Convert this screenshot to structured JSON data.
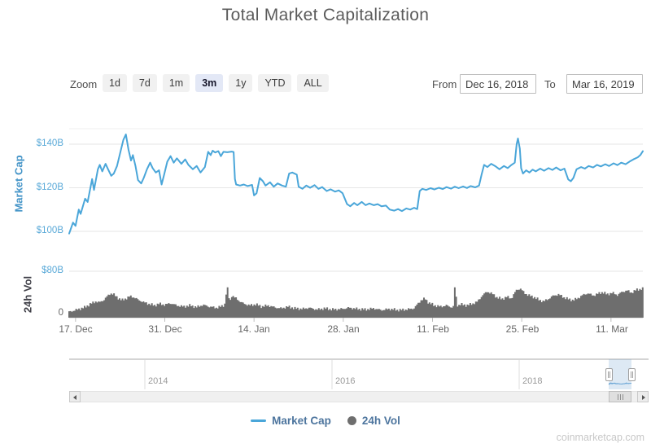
{
  "title": "Total Market Capitalization",
  "toolbar": {
    "zoom_label": "Zoom",
    "buttons": [
      {
        "label": "1d",
        "selected": false
      },
      {
        "label": "7d",
        "selected": false
      },
      {
        "label": "1m",
        "selected": false
      },
      {
        "label": "3m",
        "selected": true
      },
      {
        "label": "1y",
        "selected": false
      },
      {
        "label": "YTD",
        "selected": false
      },
      {
        "label": "ALL",
        "selected": false
      }
    ],
    "from_label": "From",
    "from_value": "Dec 16, 2018",
    "to_label": "To",
    "to_value": "Mar 16, 2019"
  },
  "axes": {
    "market_cap_title": "Market Cap",
    "vol_title": "24h Vol",
    "mc_ticks": [
      "$140B",
      "$120B",
      "$100B"
    ],
    "vol_tick_top": "$80B",
    "vol_tick_zero": "0",
    "x_labels": [
      "17. Dec",
      "31. Dec",
      "14. Jan",
      "28. Jan",
      "11. Feb",
      "25. Feb",
      "11. Mar"
    ],
    "nav_years": [
      "2014",
      "2016",
      "2018"
    ]
  },
  "legend": {
    "market_cap": "Market Cap",
    "vol": "24h Vol"
  },
  "watermark": "coinmarketcap.com",
  "colors": {
    "line_blue": "#4aa6d9",
    "vol_gray": "#6e6e6e",
    "axis_blue": "#59a9d8",
    "axis_title_blue": "#4595c8",
    "legend_text": "#4d759e",
    "selected_btn_bg": "#e3e8f6",
    "grid_gray": "#e6e6e6"
  },
  "chart_data": {
    "type": "line",
    "title": "Total Market Capitalization",
    "x_axis": {
      "start": "Dec 16, 2018",
      "end": "Mar 16, 2019",
      "unit": "days since Dec 16, 2018",
      "tick_days": [
        1,
        15,
        29,
        43,
        57,
        71,
        85
      ],
      "tick_labels": [
        "17. Dec",
        "31. Dec",
        "14. Jan",
        "28. Jan",
        "11. Feb",
        "25. Feb",
        "11. Mar"
      ]
    },
    "panes": [
      {
        "name": "Market Cap",
        "type": "line",
        "unit": "USD billions",
        "ylim": [
          95,
          148
        ],
        "yticks": [
          100,
          120,
          140
        ],
        "points": [
          [
            0,
            99
          ],
          [
            0.6,
            104
          ],
          [
            1,
            102.5
          ],
          [
            1.5,
            110
          ],
          [
            1.8,
            108
          ],
          [
            2.5,
            115
          ],
          [
            2.9,
            113.5
          ],
          [
            3.6,
            124
          ],
          [
            3.9,
            119
          ],
          [
            4.5,
            128.5
          ],
          [
            4.8,
            130.5
          ],
          [
            5.2,
            127.5
          ],
          [
            5.7,
            131
          ],
          [
            6.1,
            128.5
          ],
          [
            6.6,
            125.5
          ],
          [
            7,
            126.5
          ],
          [
            7.5,
            130
          ],
          [
            8,
            136
          ],
          [
            8.5,
            142
          ],
          [
            8.9,
            144.5
          ],
          [
            9.3,
            137.5
          ],
          [
            9.7,
            132.5
          ],
          [
            10,
            135
          ],
          [
            10.4,
            130
          ],
          [
            10.8,
            123.5
          ],
          [
            11.3,
            122
          ],
          [
            11.7,
            124.5
          ],
          [
            12.2,
            128.5
          ],
          [
            12.7,
            131.5
          ],
          [
            13.1,
            129
          ],
          [
            13.6,
            127
          ],
          [
            14.1,
            128
          ],
          [
            14.5,
            121.5
          ],
          [
            14.9,
            126
          ],
          [
            15.4,
            132
          ],
          [
            15.9,
            134.5
          ],
          [
            16.4,
            131.5
          ],
          [
            16.9,
            133.5
          ],
          [
            17.6,
            131
          ],
          [
            18.2,
            133
          ],
          [
            18.7,
            130.5
          ],
          [
            19.4,
            128.5
          ],
          [
            20,
            130
          ],
          [
            20.6,
            127
          ],
          [
            21.3,
            129.5
          ],
          [
            21.8,
            136.5
          ],
          [
            22.2,
            135
          ],
          [
            22.5,
            137
          ],
          [
            22.9,
            136.2
          ],
          [
            23.4,
            136.8
          ],
          [
            23.8,
            134.5
          ],
          [
            24.2,
            136.5
          ],
          [
            24.8,
            136.3
          ],
          [
            25.5,
            136.6
          ],
          [
            25.8,
            136.4
          ],
          [
            26,
            124
          ],
          [
            26.2,
            121.5
          ],
          [
            26.8,
            121
          ],
          [
            27.4,
            121.5
          ],
          [
            28,
            120.8
          ],
          [
            28.7,
            121.3
          ],
          [
            29,
            116.5
          ],
          [
            29.4,
            117.5
          ],
          [
            29.9,
            124.5
          ],
          [
            30.4,
            123
          ],
          [
            30.8,
            121
          ],
          [
            31.5,
            122.5
          ],
          [
            32.1,
            120.5
          ],
          [
            32.7,
            122
          ],
          [
            33.4,
            121
          ],
          [
            34,
            120.5
          ],
          [
            34.5,
            126.5
          ],
          [
            35,
            127
          ],
          [
            35.7,
            126
          ],
          [
            36,
            120.5
          ],
          [
            36.6,
            119.5
          ],
          [
            37.2,
            121
          ],
          [
            37.8,
            120
          ],
          [
            38.5,
            121.2
          ],
          [
            39.1,
            119.5
          ],
          [
            39.7,
            120.3
          ],
          [
            40.4,
            118.5
          ],
          [
            41,
            119.3
          ],
          [
            41.7,
            118.2
          ],
          [
            42.3,
            118.8
          ],
          [
            42.9,
            117.5
          ],
          [
            43.6,
            112.5
          ],
          [
            44.1,
            111.5
          ],
          [
            44.7,
            113
          ],
          [
            45.2,
            112
          ],
          [
            45.9,
            113.5
          ],
          [
            46.5,
            112
          ],
          [
            47.1,
            112.8
          ],
          [
            47.8,
            112
          ],
          [
            48.4,
            112.5
          ],
          [
            49,
            111.5
          ],
          [
            49.7,
            111.8
          ],
          [
            50.3,
            110
          ],
          [
            51,
            109.5
          ],
          [
            51.6,
            110.2
          ],
          [
            52.2,
            109.3
          ],
          [
            52.9,
            110.5
          ],
          [
            53.5,
            110
          ],
          [
            54.1,
            110.8
          ],
          [
            54.6,
            110.2
          ],
          [
            55,
            118.5
          ],
          [
            55.4,
            119.5
          ],
          [
            56,
            119
          ],
          [
            56.7,
            119.8
          ],
          [
            57.3,
            119.2
          ],
          [
            58,
            120
          ],
          [
            58.6,
            119.4
          ],
          [
            59.2,
            120.3
          ],
          [
            59.9,
            119.6
          ],
          [
            60.5,
            120.5
          ],
          [
            61.1,
            119.8
          ],
          [
            61.8,
            120.6
          ],
          [
            62.4,
            119.9
          ],
          [
            63,
            120.8
          ],
          [
            63.7,
            120.2
          ],
          [
            64.3,
            121
          ],
          [
            64.7,
            126
          ],
          [
            65.1,
            130.5
          ],
          [
            65.6,
            129.5
          ],
          [
            66.2,
            131
          ],
          [
            66.9,
            129.8
          ],
          [
            67.5,
            128.5
          ],
          [
            68.2,
            130
          ],
          [
            68.8,
            129
          ],
          [
            69.4,
            130.5
          ],
          [
            69.9,
            131.5
          ],
          [
            70.2,
            140
          ],
          [
            70.4,
            142.6
          ],
          [
            70.7,
            138
          ],
          [
            70.9,
            129
          ],
          [
            71.2,
            126.5
          ],
          [
            71.7,
            128
          ],
          [
            72.2,
            127
          ],
          [
            72.7,
            128.3
          ],
          [
            73.2,
            127.5
          ],
          [
            73.9,
            128.8
          ],
          [
            74.5,
            127.8
          ],
          [
            75.2,
            129
          ],
          [
            75.8,
            128.2
          ],
          [
            76.4,
            129.3
          ],
          [
            77.1,
            128
          ],
          [
            77.7,
            128.8
          ],
          [
            78.3,
            123.8
          ],
          [
            78.7,
            123
          ],
          [
            79.1,
            124.5
          ],
          [
            79.6,
            128.5
          ],
          [
            80.3,
            129.5
          ],
          [
            80.9,
            128.8
          ],
          [
            81.5,
            130
          ],
          [
            82.2,
            129.3
          ],
          [
            82.8,
            130.5
          ],
          [
            83.4,
            129.8
          ],
          [
            84.1,
            130.8
          ],
          [
            84.7,
            130
          ],
          [
            85.4,
            131.2
          ],
          [
            86,
            130.4
          ],
          [
            86.6,
            131.5
          ],
          [
            87.3,
            130.8
          ],
          [
            87.9,
            132
          ],
          [
            88.5,
            133
          ],
          [
            89.2,
            134
          ],
          [
            89.6,
            135
          ],
          [
            90,
            136.8
          ]
        ]
      },
      {
        "name": "24h Vol",
        "type": "column",
        "unit": "USD billions",
        "ylim": [
          0,
          80
        ],
        "yticks": [
          0,
          80
        ],
        "points": [
          [
            0,
            10
          ],
          [
            1.3,
            14
          ],
          [
            2.5,
            18
          ],
          [
            3.4,
            24
          ],
          [
            4.2,
            28
          ],
          [
            4.7,
            26
          ],
          [
            5.5,
            31
          ],
          [
            6.1,
            38
          ],
          [
            6.5,
            42
          ],
          [
            7,
            40
          ],
          [
            7.8,
            33
          ],
          [
            8.3,
            30
          ],
          [
            8.9,
            33
          ],
          [
            9.6,
            37
          ],
          [
            10.2,
            35
          ],
          [
            10.8,
            31
          ],
          [
            11.6,
            27
          ],
          [
            12.4,
            24
          ],
          [
            13.4,
            21
          ],
          [
            14.1,
            24
          ],
          [
            15,
            22
          ],
          [
            15.9,
            25
          ],
          [
            16.9,
            21
          ],
          [
            18,
            19
          ],
          [
            19,
            21
          ],
          [
            20,
            18
          ],
          [
            21,
            22
          ],
          [
            22,
            19
          ],
          [
            23.1,
            17
          ],
          [
            23.8,
            19
          ],
          [
            24.4,
            22
          ],
          [
            24.8,
            54
          ],
          [
            25.2,
            26
          ],
          [
            25.5,
            38
          ],
          [
            26.1,
            34
          ],
          [
            26.8,
            28
          ],
          [
            27.4,
            24
          ],
          [
            28.4,
            21
          ],
          [
            29.3,
            23
          ],
          [
            30.2,
            19
          ],
          [
            31.2,
            21
          ],
          [
            32.2,
            18
          ],
          [
            33.2,
            16
          ],
          [
            34.4,
            19
          ],
          [
            35.4,
            16
          ],
          [
            36.6,
            15
          ],
          [
            37.6,
            17
          ],
          [
            38.9,
            14
          ],
          [
            40.1,
            16
          ],
          [
            41.4,
            14
          ],
          [
            42.7,
            15
          ],
          [
            43.9,
            17
          ],
          [
            45.2,
            15
          ],
          [
            46.5,
            14
          ],
          [
            47.8,
            16
          ],
          [
            49,
            13
          ],
          [
            50.3,
            15
          ],
          [
            51.6,
            13
          ],
          [
            52.9,
            14
          ],
          [
            54.1,
            16
          ],
          [
            55.2,
            30
          ],
          [
            55.8,
            33
          ],
          [
            56.4,
            26
          ],
          [
            57.3,
            21
          ],
          [
            58.3,
            19
          ],
          [
            59.2,
            21
          ],
          [
            60,
            18
          ],
          [
            60.3,
            19
          ],
          [
            60.5,
            52
          ],
          [
            60.9,
            21
          ],
          [
            61.5,
            23
          ],
          [
            62.4,
            21
          ],
          [
            63.3,
            24
          ],
          [
            64,
            27
          ],
          [
            64.8,
            38
          ],
          [
            65.6,
            45
          ],
          [
            66.4,
            41
          ],
          [
            67.1,
            35
          ],
          [
            67.9,
            32
          ],
          [
            68.7,
            36
          ],
          [
            69.4,
            33
          ],
          [
            70.2,
            48
          ],
          [
            70.8,
            50
          ],
          [
            71.5,
            42
          ],
          [
            72.2,
            38
          ],
          [
            73,
            35
          ],
          [
            73.8,
            30
          ],
          [
            74.5,
            28
          ],
          [
            75.3,
            33
          ],
          [
            76,
            38
          ],
          [
            76.8,
            40
          ],
          [
            77.6,
            35
          ],
          [
            78.3,
            32
          ],
          [
            79.1,
            30
          ],
          [
            79.9,
            34
          ],
          [
            80.6,
            39
          ],
          [
            81.4,
            42
          ],
          [
            82.2,
            38
          ],
          [
            82.9,
            41
          ],
          [
            83.7,
            44
          ],
          [
            84.4,
            40
          ],
          [
            85.2,
            43
          ],
          [
            86,
            39
          ],
          [
            86.7,
            44
          ],
          [
            87.5,
            47
          ],
          [
            88.2,
            43
          ],
          [
            89,
            48
          ],
          [
            90,
            50
          ]
        ]
      }
    ],
    "navigator": {
      "year_ticks": [
        "2014",
        "2016",
        "2018"
      ],
      "selected_range": [
        "Dec 16, 2018",
        "Mar 16, 2019"
      ],
      "full_range_max_billions": 830
    },
    "legend": [
      "Market Cap",
      "24h Vol"
    ]
  }
}
